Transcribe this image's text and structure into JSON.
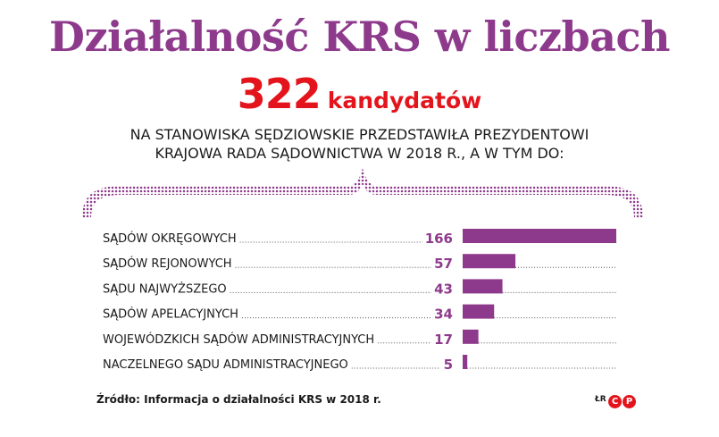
{
  "title": "Działalność KRS w liczbach",
  "headline": {
    "number": "322",
    "unit": "kandydatów"
  },
  "subtitle": {
    "line1": "NA STANOWISKA SĘDZIOWSKIE PRZEDSTAWIŁA PREZYDENTOWI",
    "line2": "KRAJOWA RADA SĄDOWNICTWA W 2018 R., A W TYM DO:"
  },
  "footer": {
    "source": "Źródło: Informacja o działalności KRS w 2018 r.",
    "initials": "ŁR",
    "logo_text": "CP"
  },
  "colors": {
    "title": "#8e3a8c",
    "headline": "#e3141b",
    "bar": "#8e3a8c",
    "value": "#8e3a8c"
  },
  "chart_data": {
    "type": "bar",
    "orientation": "horizontal",
    "categories": [
      "SĄDÓW OKRĘGOWYCH",
      "SĄDÓW REJONOWYCH",
      "SĄDU NAJWYŻSZEGO",
      "SĄDÓW APELACYJNYCH",
      "WOJEWÓDZKICH SĄDÓW ADMINISTRACYJNYCH",
      "NACZELNEGO SĄDU ADMINISTRACYJNEGO"
    ],
    "values": [
      166,
      57,
      43,
      34,
      17,
      5
    ],
    "value_labels": [
      "166",
      "57",
      "43",
      "34",
      "17",
      "5"
    ],
    "total": 322,
    "xlim": [
      0,
      166
    ]
  }
}
